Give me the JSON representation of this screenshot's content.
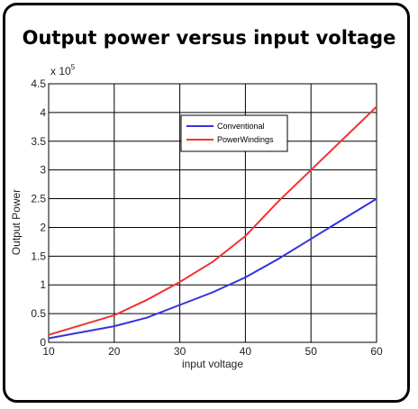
{
  "chart_data": {
    "type": "line",
    "title": "Output power versus input voltage",
    "xlabel": "input voltage",
    "ylabel": "Output Power",
    "y_multiplier_label": "x 10",
    "y_multiplier_exponent": "5",
    "xlim": [
      10,
      60
    ],
    "ylim": [
      0,
      4.5
    ],
    "x_ticks": [
      10,
      20,
      30,
      40,
      50,
      60
    ],
    "y_ticks": [
      0,
      0.5,
      1,
      1.5,
      2,
      2.5,
      3,
      3.5,
      4,
      4.5
    ],
    "x_tick_labels": [
      "10",
      "20",
      "30",
      "40",
      "50",
      "60"
    ],
    "y_tick_labels": [
      "0",
      "0.5",
      "1",
      "1.5",
      "2",
      "2.5",
      "3",
      "3.5",
      "4",
      "4.5"
    ],
    "grid": true,
    "legend_position": "top-center",
    "series": [
      {
        "name": "Conventional",
        "color": "#3333dd",
        "x": [
          10,
          20,
          25,
          30,
          35,
          40,
          45,
          50,
          55,
          60
        ],
        "y": [
          0.07,
          0.28,
          0.43,
          0.65,
          0.87,
          1.13,
          1.45,
          1.8,
          2.15,
          2.5
        ]
      },
      {
        "name": "PowerWindings",
        "color": "#ee3333",
        "x": [
          10,
          20,
          25,
          30,
          35,
          40,
          45,
          50,
          55,
          60
        ],
        "y": [
          0.13,
          0.47,
          0.74,
          1.05,
          1.4,
          1.85,
          2.45,
          3.0,
          3.55,
          4.1
        ]
      }
    ]
  }
}
